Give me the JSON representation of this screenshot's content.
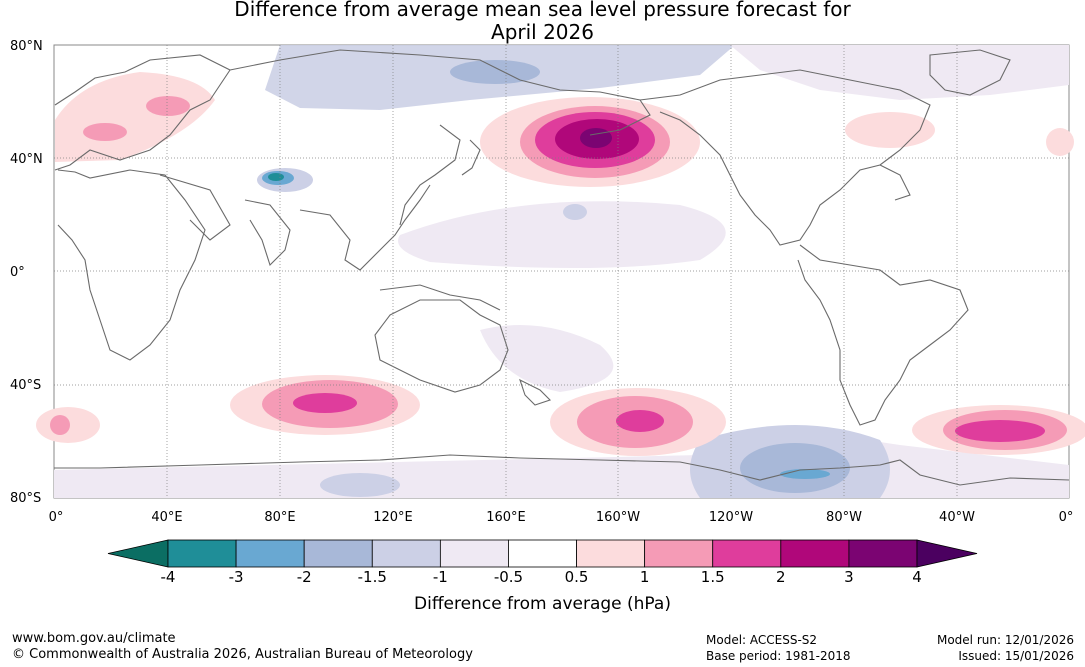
{
  "title_line1": "Difference from average mean sea level pressure forecast for",
  "title_line2": "April 2026",
  "lat_labels": [
    "80°N",
    "40°N",
    "0°",
    "40°S",
    "80°S"
  ],
  "lon_labels": [
    "0°",
    "40°E",
    "80°E",
    "120°E",
    "160°E",
    "160°W",
    "120°W",
    "80°W",
    "40°W",
    "0°"
  ],
  "colorbar": {
    "ticks": [
      "-4",
      "-3",
      "-2",
      "-1.5",
      "-1",
      "-0.5",
      "0.5",
      "1",
      "1.5",
      "2",
      "3",
      "4"
    ],
    "colors": [
      "#0b6e63",
      "#1f8e98",
      "#69a8d2",
      "#a8b8d8",
      "#ccd0e6",
      "#efe9f3",
      "#ffffff",
      "#fcdcdd",
      "#f59bb6",
      "#df3d9c",
      "#b0077a",
      "#7b0472",
      "#4b0060"
    ],
    "label": "Difference from average (hPa)"
  },
  "footer": {
    "url": "www.bom.gov.au/climate",
    "copyright": "© Commonwealth of Australia 2026, Australian Bureau of Meteorology",
    "model": "Model: ACCESS-S2",
    "base_period": "Base period: 1981-2018",
    "model_run": "Model run: 12/01/2026",
    "issued": "Issued: 15/01/2026"
  }
}
